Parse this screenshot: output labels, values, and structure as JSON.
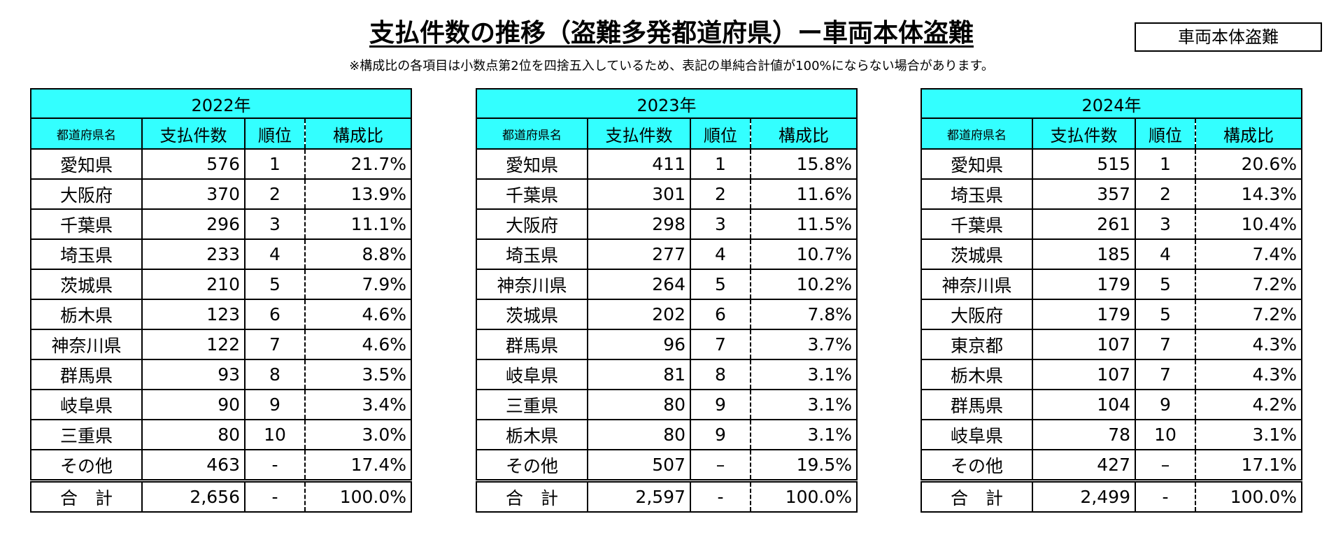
{
  "header": {
    "title": "支払件数の推移（盗難多発都道府県）ー車両本体盗難",
    "badge": "車両本体盗難",
    "note": "※構成比の各項目は小数点第2位を四捨五入しているため、表記の単純合計値が100%にならない場合があります。"
  },
  "tables": [
    {
      "year": "2022年",
      "columns": [
        "都道府県名",
        "支払件数",
        "順位",
        "構成比"
      ],
      "rows": [
        [
          "愛知県",
          "576",
          "1",
          "21.7%"
        ],
        [
          "大阪府",
          "370",
          "2",
          "13.9%"
        ],
        [
          "千葉県",
          "296",
          "3",
          "11.1%"
        ],
        [
          "埼玉県",
          "233",
          "4",
          "8.8%"
        ],
        [
          "茨城県",
          "210",
          "5",
          "7.9%"
        ],
        [
          "栃木県",
          "123",
          "6",
          "4.6%"
        ],
        [
          "神奈川県",
          "122",
          "7",
          "4.6%"
        ],
        [
          "群馬県",
          "93",
          "8",
          "3.5%"
        ],
        [
          "岐阜県",
          "90",
          "9",
          "3.4%"
        ],
        [
          "三重県",
          "80",
          "10",
          "3.0%"
        ],
        [
          "その他",
          "463",
          "-",
          "17.4%"
        ]
      ],
      "total": [
        "合　計",
        "2,656",
        "-",
        "100.0%"
      ]
    },
    {
      "year": "2023年",
      "columns": [
        "都道府県名",
        "支払件数",
        "順位",
        "構成比"
      ],
      "rows": [
        [
          "愛知県",
          "411",
          "1",
          "15.8%"
        ],
        [
          "千葉県",
          "301",
          "2",
          "11.6%"
        ],
        [
          "大阪府",
          "298",
          "3",
          "11.5%"
        ],
        [
          "埼玉県",
          "277",
          "4",
          "10.7%"
        ],
        [
          "神奈川県",
          "264",
          "5",
          "10.2%"
        ],
        [
          "茨城県",
          "202",
          "6",
          "7.8%"
        ],
        [
          "群馬県",
          "96",
          "7",
          "3.7%"
        ],
        [
          "岐阜県",
          "81",
          "8",
          "3.1%"
        ],
        [
          "三重県",
          "80",
          "9",
          "3.1%"
        ],
        [
          "栃木県",
          "80",
          "9",
          "3.1%"
        ],
        [
          "その他",
          "507",
          "–",
          "19.5%"
        ]
      ],
      "total": [
        "合　計",
        "2,597",
        "-",
        "100.0%"
      ]
    },
    {
      "year": "2024年",
      "columns": [
        "都道府県名",
        "支払件数",
        "順位",
        "構成比"
      ],
      "rows": [
        [
          "愛知県",
          "515",
          "1",
          "20.6%"
        ],
        [
          "埼玉県",
          "357",
          "2",
          "14.3%"
        ],
        [
          "千葉県",
          "261",
          "3",
          "10.4%"
        ],
        [
          "茨城県",
          "185",
          "4",
          "7.4%"
        ],
        [
          "神奈川県",
          "179",
          "5",
          "7.2%"
        ],
        [
          "大阪府",
          "179",
          "5",
          "7.2%"
        ],
        [
          "東京都",
          "107",
          "7",
          "4.3%"
        ],
        [
          "栃木県",
          "107",
          "7",
          "4.3%"
        ],
        [
          "群馬県",
          "104",
          "9",
          "4.2%"
        ],
        [
          "岐阜県",
          "78",
          "10",
          "3.1%"
        ],
        [
          "その他",
          "427",
          "–",
          "17.1%"
        ]
      ],
      "total": [
        "合　計",
        "2,499",
        "-",
        "100.0%"
      ]
    }
  ]
}
